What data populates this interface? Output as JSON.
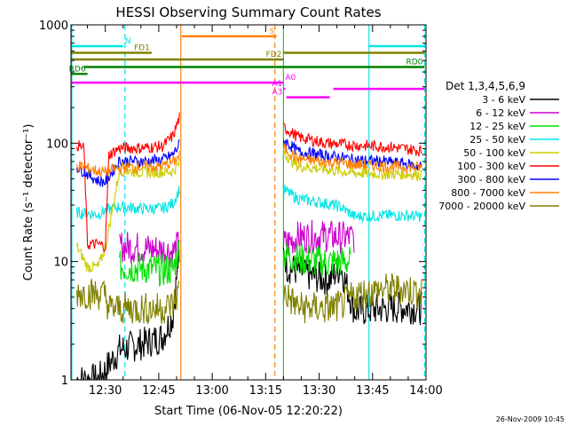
{
  "chart_data": {
    "type": "line",
    "title": "HESSI Observing Summary Count Rates",
    "xlabel": "Start Time (06-Nov-05 12:20:22)",
    "ylabel": "Count Rate (s⁻¹ detector⁻¹)",
    "timestamp": "26-Nov-2009 10:45",
    "x_unit": "minutes after 12:00 UT, 06-Nov-05",
    "xlim": [
      20.37,
      120.0
    ],
    "ylim": [
      1,
      1000
    ],
    "yscale": "log",
    "x_ticks": [
      {
        "x": 30,
        "label": "12:30"
      },
      {
        "x": 45,
        "label": "12:45"
      },
      {
        "x": 60,
        "label": "13:00"
      },
      {
        "x": 75,
        "label": "13:15"
      },
      {
        "x": 90,
        "label": "13:30"
      },
      {
        "x": 105,
        "label": "13:45"
      },
      {
        "x": 120,
        "label": "14:00"
      }
    ],
    "y_ticks": [
      {
        "y": 1,
        "label": "1"
      },
      {
        "y": 10,
        "label": "10"
      },
      {
        "y": 100,
        "label": "100"
      },
      {
        "y": 1000,
        "label": "1000"
      }
    ],
    "legend_title": "Det 1,3,4,5,6,9",
    "legend_position": "right",
    "segments": [
      [
        20.37,
        51.0
      ],
      [
        80.0,
        120.0
      ]
    ],
    "series": [
      {
        "name": "3 - 6 keV",
        "color": "#000000",
        "values": [
          [
            22,
            1.0
          ],
          [
            28,
            1.0
          ],
          [
            34,
            1.8
          ],
          [
            40,
            2.0
          ],
          [
            46,
            2.3
          ],
          [
            49,
            3.5
          ],
          [
            50.8,
            13.0
          ],
          [
            80.3,
            12.0
          ],
          [
            81,
            9.0
          ],
          [
            88,
            7.5
          ],
          [
            93,
            7.0
          ],
          [
            96,
            9.0
          ],
          [
            100,
            3.8
          ],
          [
            108,
            4.0
          ],
          [
            114,
            4.1
          ],
          [
            119,
            4.0
          ]
        ]
      },
      {
        "name": "6 - 12 keV",
        "color": "#cc00cc",
        "values": [
          [
            34,
            13.5
          ],
          [
            40,
            13.0
          ],
          [
            46,
            12.5
          ],
          [
            49,
            12.0
          ],
          [
            50.8,
            14.0
          ],
          [
            80.3,
            14.0
          ],
          [
            84,
            16.0
          ],
          [
            92,
            16.5
          ],
          [
            96,
            16.0
          ],
          [
            99,
            16.0
          ],
          [
            100,
            16.0
          ]
        ]
      },
      {
        "name": "12 - 25 keV",
        "color": "#00e000",
        "values": [
          [
            34,
            9.0
          ],
          [
            40,
            8.8
          ],
          [
            46,
            8.4
          ],
          [
            49,
            8.5
          ],
          [
            50.8,
            13.5
          ],
          [
            80.3,
            11.5
          ],
          [
            84,
            10.5
          ],
          [
            92,
            9.8
          ],
          [
            96,
            10.0
          ],
          [
            99,
            10.0
          ]
        ]
      },
      {
        "name": "25 - 50 keV",
        "color": "#00e5e5",
        "values": [
          [
            22,
            26.0
          ],
          [
            28,
            25.0
          ],
          [
            30,
            27.0
          ],
          [
            34,
            29.0
          ],
          [
            40,
            28.0
          ],
          [
            46,
            28.0
          ],
          [
            49,
            31.0
          ],
          [
            50.8,
            41.0
          ],
          [
            80.3,
            40.0
          ],
          [
            84,
            34.0
          ],
          [
            92,
            31.0
          ],
          [
            96,
            29.0
          ],
          [
            100,
            24.0
          ],
          [
            108,
            24.5
          ],
          [
            114,
            24.5
          ],
          [
            119,
            24.0
          ]
        ]
      },
      {
        "name": "50 - 100 keV",
        "color": "#cccc00",
        "values": [
          [
            22,
            13.5
          ],
          [
            25,
            9.0
          ],
          [
            28,
            9.0
          ],
          [
            30,
            13.0
          ],
          [
            34,
            59.0
          ],
          [
            40,
            57.0
          ],
          [
            46,
            57.0
          ],
          [
            49,
            58.0
          ],
          [
            50.8,
            67.0
          ],
          [
            80.3,
            82.0
          ],
          [
            84,
            64.0
          ],
          [
            92,
            60.0
          ],
          [
            96,
            58.0
          ],
          [
            100,
            56.0
          ],
          [
            108,
            55.0
          ],
          [
            114,
            55.0
          ],
          [
            119,
            54.0
          ]
        ]
      },
      {
        "name": "100 - 300 keV",
        "color": "#ff0000",
        "values": [
          [
            22,
            97.0
          ],
          [
            24,
            90.0
          ],
          [
            25,
            14.0
          ],
          [
            28,
            14.0
          ],
          [
            30,
            13.5
          ],
          [
            31,
            80.0
          ],
          [
            34,
            91.0
          ],
          [
            40,
            91.0
          ],
          [
            46,
            94.0
          ],
          [
            49,
            115.0
          ],
          [
            50.8,
            165.0
          ],
          [
            80.3,
            135.0
          ],
          [
            84,
            113.0
          ],
          [
            92,
            100.0
          ],
          [
            96,
            98.0
          ],
          [
            100,
            96.0
          ],
          [
            108,
            94.0
          ],
          [
            114,
            90.0
          ],
          [
            119,
            86.0
          ]
        ]
      },
      {
        "name": "300 - 800 keV",
        "color": "#0000ff",
        "values": [
          [
            22,
            63.0
          ],
          [
            28,
            48.0
          ],
          [
            30,
            47.0
          ],
          [
            34,
            71.0
          ],
          [
            40,
            70.0
          ],
          [
            46,
            72.0
          ],
          [
            49,
            80.0
          ],
          [
            50.8,
            98.0
          ],
          [
            80.3,
            105.0
          ],
          [
            84,
            85.0
          ],
          [
            92,
            78.0
          ],
          [
            96,
            76.0
          ],
          [
            100,
            72.0
          ],
          [
            108,
            70.0
          ],
          [
            114,
            67.0
          ],
          [
            119,
            63.0
          ]
        ]
      },
      {
        "name": "800 - 7000 keV",
        "color": "#ff8000",
        "values": [
          [
            22,
            65.0
          ],
          [
            28,
            58.0
          ],
          [
            30,
            57.0
          ],
          [
            34,
            62.0
          ],
          [
            40,
            63.0
          ],
          [
            46,
            64.0
          ],
          [
            49,
            69.0
          ],
          [
            50.8,
            78.0
          ],
          [
            80.3,
            90.0
          ],
          [
            84,
            74.0
          ],
          [
            92,
            69.0
          ],
          [
            96,
            68.0
          ],
          [
            100,
            66.0
          ],
          [
            108,
            64.0
          ],
          [
            114,
            63.0
          ],
          [
            119,
            62.0
          ]
        ]
      },
      {
        "name": "7000 - 20000 keV",
        "color": "#808000",
        "values": [
          [
            22,
            5.5
          ],
          [
            28,
            5.3
          ],
          [
            30,
            5.2
          ],
          [
            31,
            4.0
          ],
          [
            34,
            4.0
          ],
          [
            40,
            4.0
          ],
          [
            46,
            4.0
          ],
          [
            49,
            4.3
          ],
          [
            50.8,
            5.8
          ],
          [
            80.3,
            5.5
          ],
          [
            84,
            4.1
          ],
          [
            92,
            4.0
          ],
          [
            96,
            4.2
          ],
          [
            100,
            5.2
          ],
          [
            108,
            5.8
          ],
          [
            114,
            5.9
          ],
          [
            119,
            5.4
          ]
        ]
      }
    ],
    "flags": [
      {
        "label": "N",
        "color": "#00e5e5",
        "y": 660,
        "ranges": [
          [
            20.37,
            35.0
          ],
          [
            104.0,
            119.6
          ]
        ]
      },
      {
        "label": "S",
        "color": "#ff8000",
        "y": 800,
        "ranges": [
          [
            51.5,
            78.0
          ]
        ]
      },
      {
        "label": "FD1",
        "color": "#808000",
        "y": 580,
        "ranges": [
          [
            20.37,
            43.0
          ],
          [
            80.0,
            119.6
          ]
        ]
      },
      {
        "label": "FD2",
        "color": "#808000",
        "y": 510,
        "ranges": [
          [
            20.37,
            80.0
          ]
        ]
      },
      {
        "label": "RD0",
        "color": "#008000",
        "y": 440,
        "ranges": [
          [
            24.0,
            119.6
          ]
        ]
      },
      {
        "label": "RD6",
        "color": "#008000",
        "y": 385,
        "ranges": [
          [
            20.37,
            25.0
          ]
        ]
      },
      {
        "label": "A0",
        "color": "#ff00ff",
        "y": 325,
        "ranges": [
          [
            20.37,
            80.0
          ]
        ]
      },
      {
        "label": "A1",
        "color": "#ff00ff",
        "y": 288,
        "ranges": [
          [
            80.0,
            80.5
          ],
          [
            94.0,
            119.6
          ]
        ]
      },
      {
        "label": "A3",
        "color": "#ff00ff",
        "y": 244,
        "ranges": [
          [
            80.8,
            93.0
          ]
        ]
      }
    ],
    "vertical_markers": [
      {
        "x": 20.6,
        "color": "#00e5e5",
        "style": "solid"
      },
      {
        "x": 35.5,
        "color": "#00e5e5",
        "style": "dashed"
      },
      {
        "x": 51.2,
        "color": "#ff8000",
        "style": "solid"
      },
      {
        "x": 77.6,
        "color": "#ff8000",
        "style": "dashed"
      },
      {
        "x": 80.0,
        "color": "#00e000",
        "style": "solid"
      },
      {
        "x": 104.0,
        "color": "#00e5e5",
        "style": "solid"
      },
      {
        "x": 119.6,
        "color": "#00e5e5",
        "style": "dashed"
      }
    ]
  }
}
